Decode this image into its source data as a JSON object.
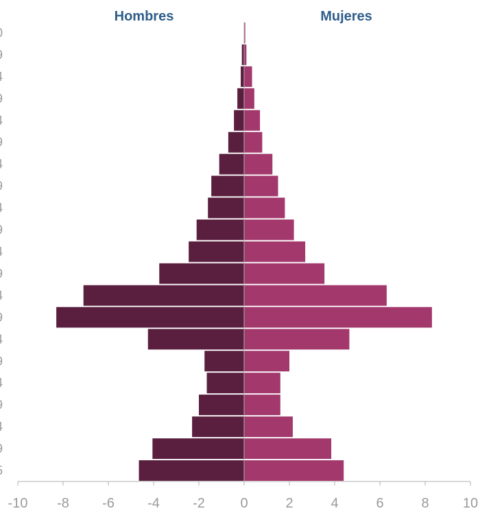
{
  "chart_data": {
    "type": "bar",
    "orientation": "horizontal",
    "layout": "population-pyramid",
    "title": "",
    "xlabel": "",
    "ylabel": "",
    "xlim": [
      -10,
      10
    ],
    "x_ticks": [
      "-10",
      "-8",
      "-6",
      "-4",
      "-2",
      "0",
      "2",
      "4",
      "6",
      "8",
      "10"
    ],
    "categories": [
      "5",
      "9",
      "4",
      "9",
      "4",
      "9",
      "4",
      "9",
      "4",
      "9",
      "4",
      "9",
      "4",
      "9",
      "4",
      "9",
      "4",
      "9",
      "4",
      "9",
      "0"
    ],
    "series": [
      {
        "name": "Hombres",
        "color": "#5a1f3e",
        "values": [
          -4.65,
          -4.05,
          -2.3,
          -2.0,
          -1.65,
          -1.75,
          -4.25,
          -8.3,
          -7.1,
          -3.75,
          -2.45,
          -2.1,
          -1.6,
          -1.45,
          -1.1,
          -0.7,
          -0.45,
          -0.3,
          -0.15,
          -0.1,
          0.0
        ]
      },
      {
        "name": "Mujeres",
        "color": "#a2386c",
        "values": [
          4.4,
          3.85,
          2.15,
          1.6,
          1.6,
          2.0,
          4.65,
          8.3,
          6.3,
          3.55,
          2.7,
          2.2,
          1.8,
          1.5,
          1.25,
          0.8,
          0.7,
          0.45,
          0.35,
          0.1,
          0.05
        ]
      }
    ],
    "grid": false,
    "legend": "top"
  }
}
